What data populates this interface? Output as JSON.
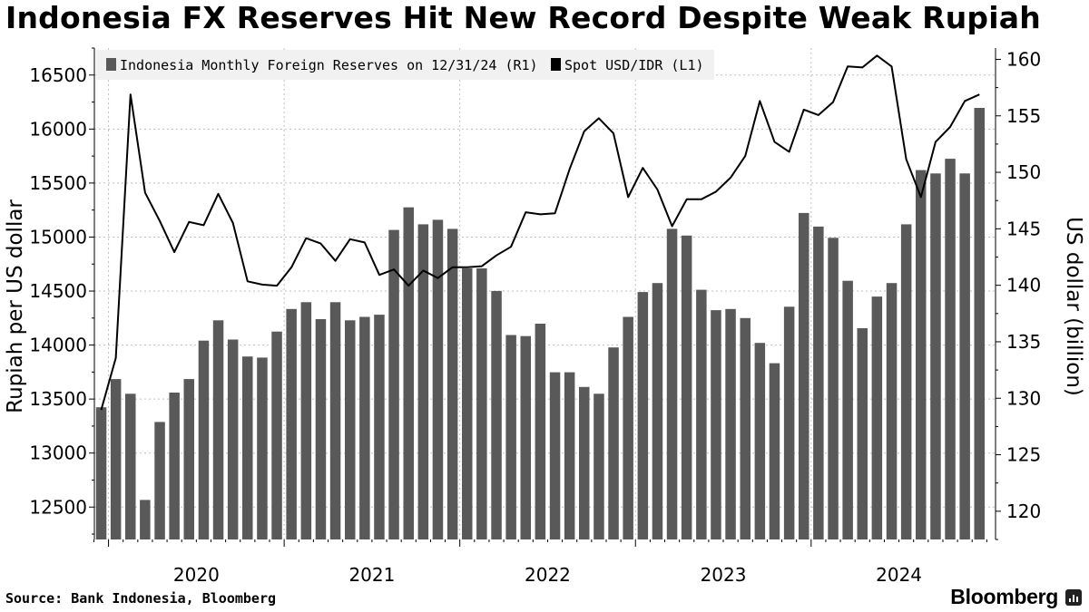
{
  "title": "Indonesia FX Reserves Hit New Record Despite Weak Rupiah",
  "source": "Source: Bank Indonesia, Bloomberg",
  "brand": "Bloomberg",
  "colors": {
    "bars": "#595959",
    "line": "#000000",
    "legend_bg": "#f1f1f1",
    "grid": "#bfbfbf"
  },
  "chart_data": {
    "type": "bar",
    "title": "Indonesia FX Reserves Hit New Record Despite Weak Rupiah",
    "legend_placement": "top-left",
    "grid": true,
    "x_tick_labels": [
      "2020",
      "2021",
      "2022",
      "2023",
      "2024"
    ],
    "y_left": {
      "label": "Rupiah per US dollar",
      "ticks": [
        12500,
        13000,
        13500,
        14000,
        14500,
        15000,
        15500,
        16000,
        16500
      ],
      "range": [
        12200,
        16750
      ]
    },
    "y_right": {
      "label": "US dollar (billion)",
      "ticks": [
        120,
        125,
        130,
        135,
        140,
        145,
        150,
        155,
        160
      ],
      "range": [
        117.5,
        161
      ]
    },
    "series": [
      {
        "name": "Indonesia Monthly Foreign Reserves on 12/31/24 (R1)",
        "type": "bar",
        "axis": "right",
        "start": "2019-12",
        "values": [
          129.2,
          131.7,
          130.4,
          121.0,
          127.9,
          130.5,
          131.7,
          135.1,
          136.9,
          135.2,
          133.7,
          133.6,
          135.9,
          137.9,
          138.5,
          137.0,
          138.5,
          136.9,
          137.2,
          137.4,
          144.9,
          146.9,
          145.4,
          145.8,
          145.0,
          141.5,
          141.5,
          139.5,
          135.6,
          135.5,
          136.6,
          132.3,
          132.3,
          131.0,
          130.4,
          134.5,
          137.2,
          139.4,
          140.2,
          145.0,
          144.4,
          139.6,
          137.8,
          137.9,
          137.1,
          134.9,
          133.1,
          138.1,
          146.4,
          145.2,
          144.2,
          140.4,
          136.2,
          139.0,
          140.2,
          145.4,
          150.2,
          149.9,
          151.2,
          149.9,
          155.7
        ]
      },
      {
        "name": "Spot USD/IDR (L1)",
        "type": "line",
        "axis": "left",
        "start": "2019-12",
        "values": [
          13400,
          13880,
          16320,
          15410,
          15150,
          14860,
          15140,
          15110,
          15400,
          15130,
          14590,
          14560,
          14550,
          14720,
          14990,
          14940,
          14780,
          14980,
          14950,
          14650,
          14700,
          14550,
          14690,
          14620,
          14720,
          14720,
          14730,
          14830,
          14910,
          15230,
          15210,
          15220,
          15630,
          15980,
          16100,
          15960,
          15370,
          15640,
          15440,
          15100,
          15350,
          15350,
          15420,
          15550,
          15750,
          16260,
          15880,
          15790,
          16180,
          16130,
          16250,
          16580,
          16570,
          16680,
          16580,
          15720,
          15370,
          15880,
          16020,
          16260,
          16320
        ]
      }
    ]
  }
}
